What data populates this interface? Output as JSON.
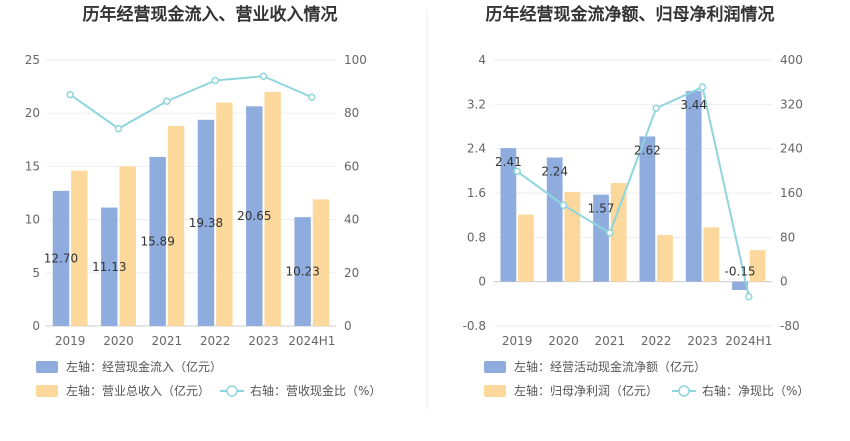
{
  "chart_data": [
    {
      "type": "bar",
      "title": "历年经营现金流入、营业收入情况",
      "categories": [
        "2019",
        "2020",
        "2021",
        "2022",
        "2023",
        "2024H1"
      ],
      "left_axis": {
        "min": 0,
        "max": 25,
        "ticks": [
          "0",
          "5",
          "10",
          "15",
          "20",
          "25"
        ]
      },
      "right_axis": {
        "min": 0,
        "max": 100,
        "ticks": [
          "0",
          "20",
          "40",
          "60",
          "80",
          "100"
        ]
      },
      "series": [
        {
          "name": "左轴：经营现金流入（亿元）",
          "kind": "bar",
          "axis": "left",
          "color": "#8eadde",
          "values": [
            12.7,
            11.13,
            15.89,
            19.38,
            20.65,
            10.23
          ],
          "labels": [
            "12.70",
            "11.13",
            "15.89",
            "19.38",
            "20.65",
            "10.23"
          ]
        },
        {
          "name": "左轴：营业总收入（亿元）",
          "kind": "bar",
          "axis": "left",
          "color": "#fdd89c",
          "values": [
            14.6,
            15.0,
            18.8,
            21.0,
            22.0,
            11.9
          ]
        },
        {
          "name": "右轴：营收现金比（%）",
          "kind": "line",
          "axis": "right",
          "color": "#8fd6dc",
          "values": [
            87.0,
            74.2,
            84.5,
            92.3,
            93.9,
            86.0
          ]
        }
      ],
      "grid": true
    },
    {
      "type": "bar",
      "title": "历年经营现金流净额、归母净利润情况",
      "categories": [
        "2019",
        "2020",
        "2021",
        "2022",
        "2023",
        "2024H1"
      ],
      "left_axis": {
        "min": -0.8,
        "max": 4,
        "ticks": [
          "-0.8",
          "0",
          "0.8",
          "1.6",
          "2.4",
          "3.2",
          "4"
        ]
      },
      "right_axis": {
        "min": -80,
        "max": 400,
        "ticks": [
          "-80",
          "0",
          "80",
          "160",
          "240",
          "320",
          "400"
        ]
      },
      "series": [
        {
          "name": "左轴：经营活动现金流净额（亿元）",
          "kind": "bar",
          "axis": "left",
          "color": "#8eadde",
          "values": [
            2.41,
            2.24,
            1.57,
            2.62,
            3.44,
            -0.15
          ],
          "labels": [
            "2.41",
            "2.24",
            "1.57",
            "2.62",
            "3.44",
            "-0.15"
          ]
        },
        {
          "name": "左轴：归母净利润（亿元）",
          "kind": "bar",
          "axis": "left",
          "color": "#fdd89c",
          "values": [
            1.21,
            1.62,
            1.78,
            0.84,
            0.98,
            0.57
          ]
        },
        {
          "name": "右轴：净现比（%）",
          "kind": "line",
          "axis": "right",
          "color": "#8fd6dc",
          "values": [
            199,
            138,
            88,
            313,
            351,
            -27
          ]
        }
      ],
      "grid": true
    }
  ]
}
